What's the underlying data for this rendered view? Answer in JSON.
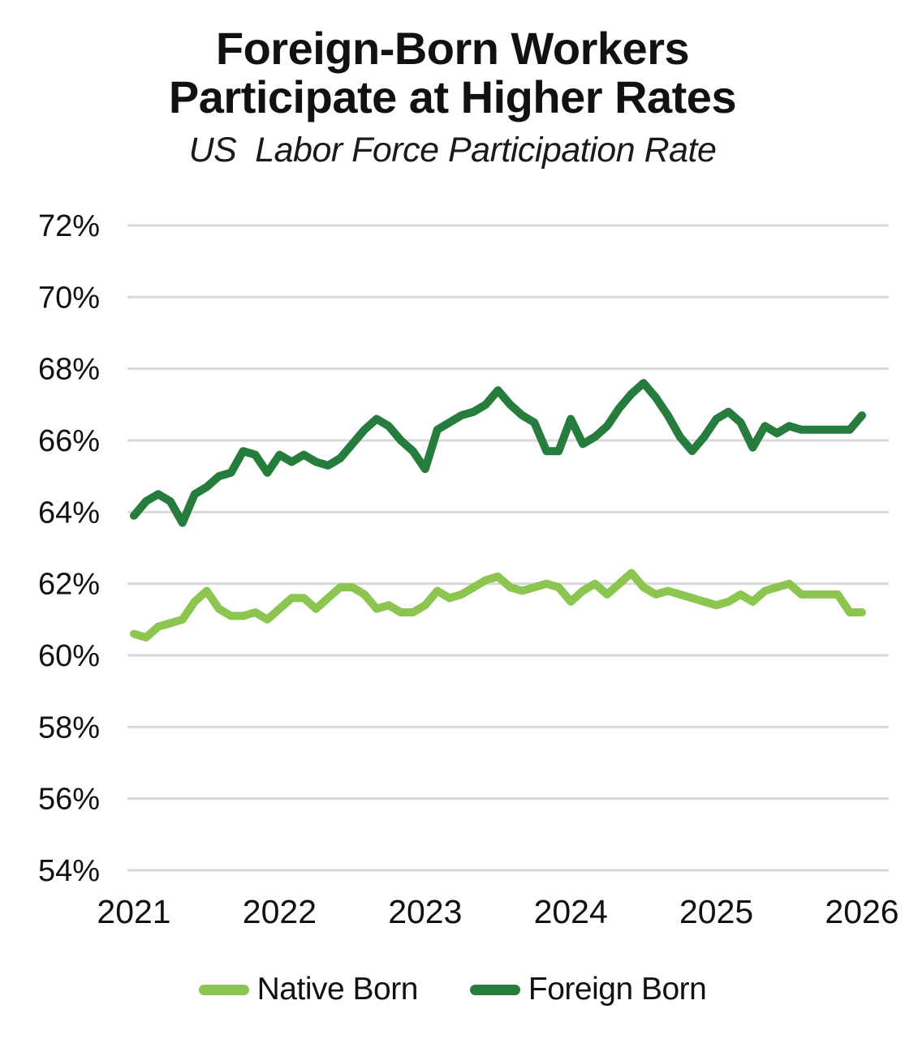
{
  "title": {
    "line1": "Foreign-Born Workers",
    "line2": "Participate at Higher Rates",
    "subtitle": "US  Labor Force Participation Rate"
  },
  "legend": {
    "items": [
      {
        "label": "Native Born",
        "color": "#8CC550"
      },
      {
        "label": "Foreign Born",
        "color": "#257C3C"
      }
    ]
  },
  "axes": {
    "y_tick_labels": [
      "54%",
      "56%",
      "58%",
      "60%",
      "62%",
      "64%",
      "66%",
      "68%",
      "70%",
      "72%"
    ],
    "x_tick_labels": [
      "2021",
      "2022",
      "2023",
      "2024",
      "2025",
      "2026"
    ]
  },
  "chart_data": {
    "type": "line",
    "title": "Foreign-Born Workers Participate at Higher Rates",
    "subtitle": "US Labor Force Participation Rate",
    "x_unit": "month",
    "x_start": "2021-01",
    "x_end": "2026-01",
    "x_tick_labels": [
      "2021",
      "2022",
      "2023",
      "2024",
      "2025",
      "2026"
    ],
    "ylim": [
      54,
      72
    ],
    "y_ticks": [
      54,
      56,
      58,
      60,
      62,
      64,
      66,
      68,
      70,
      72
    ],
    "grid": "horizontal",
    "legend_position": "bottom",
    "gridline_color": "#d9d9d9",
    "series": [
      {
        "name": "Native Born",
        "color": "#8CC550",
        "values": [
          60.6,
          60.5,
          60.8,
          60.9,
          61.0,
          61.5,
          61.8,
          61.3,
          61.1,
          61.1,
          61.2,
          61.0,
          61.3,
          61.6,
          61.6,
          61.3,
          61.6,
          61.9,
          61.9,
          61.7,
          61.3,
          61.4,
          61.2,
          61.2,
          61.4,
          61.8,
          61.6,
          61.7,
          61.9,
          62.1,
          62.2,
          61.9,
          61.8,
          61.9,
          62.0,
          61.9,
          61.5,
          61.8,
          62.0,
          61.7,
          62.0,
          62.3,
          61.9,
          61.7,
          61.8,
          61.7,
          61.6,
          61.5,
          61.4,
          61.5,
          61.7,
          61.5,
          61.8,
          61.9,
          62.0,
          61.7,
          61.7,
          61.7,
          61.7,
          61.2,
          61.2
        ]
      },
      {
        "name": "Foreign Born",
        "color": "#257C3C",
        "values": [
          63.9,
          64.3,
          64.5,
          64.3,
          63.7,
          64.5,
          64.7,
          65.0,
          65.1,
          65.7,
          65.6,
          65.1,
          65.6,
          65.4,
          65.6,
          65.4,
          65.3,
          65.5,
          65.9,
          66.3,
          66.6,
          66.4,
          66.0,
          65.7,
          65.2,
          66.3,
          66.5,
          66.7,
          66.8,
          67.0,
          67.4,
          67.0,
          66.7,
          66.5,
          65.7,
          65.7,
          66.6,
          65.9,
          66.1,
          66.4,
          66.9,
          67.3,
          67.6,
          67.2,
          66.7,
          66.1,
          65.7,
          66.1,
          66.6,
          66.8,
          66.5,
          65.8,
          66.4,
          66.2,
          66.4,
          66.3,
          66.3,
          66.3,
          66.3,
          66.3,
          66.7
        ]
      }
    ]
  }
}
